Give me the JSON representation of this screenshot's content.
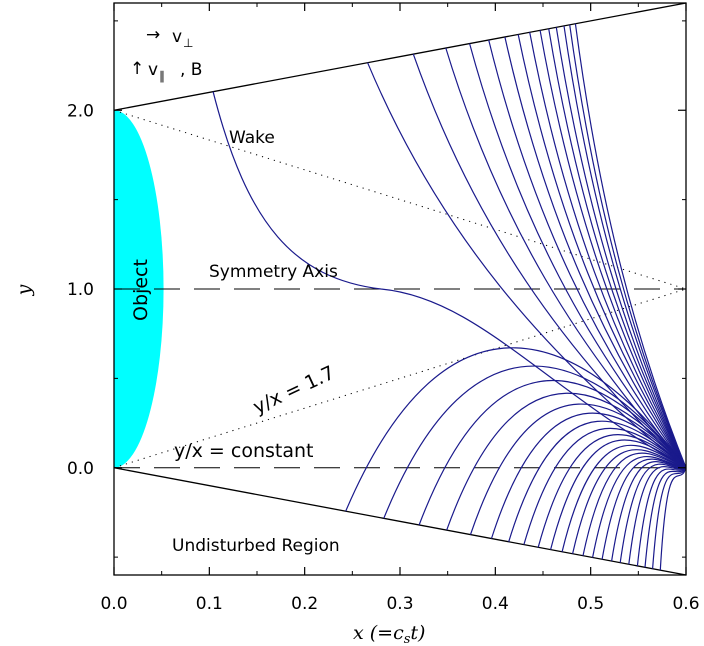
{
  "chart_data": {
    "type": "line",
    "title": "",
    "xlabel": "x (=c",
    "xlabel_sub": "s",
    "xlabel_tail": "t)",
    "ylabel": "y",
    "xlim": [
      0.0,
      0.6
    ],
    "ylim": [
      -0.6,
      2.6
    ],
    "x_ticks": [
      0.0,
      0.1,
      0.2,
      0.3,
      0.4,
      0.5,
      0.6
    ],
    "x_tick_labels": [
      "0.0",
      "0.1",
      "0.2",
      "0.3",
      "0.4",
      "0.5",
      "0.6"
    ],
    "y_ticks": [
      0.0,
      1.0,
      2.0
    ],
    "y_tick_labels": [
      "0.0",
      "1.0",
      "2.0"
    ],
    "grid": false,
    "curve_color": "#1a1a8c",
    "object_color": "#00ffff",
    "object": {
      "label": "Object",
      "center_x": 0.0,
      "center_y": 1.0,
      "semi_x": 0.052,
      "semi_y": 1.0
    },
    "boundary_lines": [
      {
        "name": "upper-boundary",
        "x": [
          0.0,
          0.6
        ],
        "y": [
          2.0,
          2.6
        ]
      },
      {
        "name": "lower-boundary",
        "x": [
          0.0,
          0.6
        ],
        "y": [
          0.0,
          -0.6
        ]
      }
    ],
    "dotted_lines": [
      {
        "name": "upper-dotted",
        "x": [
          0.0,
          0.6
        ],
        "y": [
          2.0,
          1.0
        ]
      },
      {
        "name": "lower-dotted",
        "x": [
          0.0,
          0.6
        ],
        "y": [
          0.0,
          1.0
        ]
      }
    ],
    "dashed_lines": [
      {
        "name": "symmetry-axis",
        "y": 1.0
      },
      {
        "name": "constant-line",
        "y": 0.0
      }
    ],
    "field_lines_upper": [
      {
        "x0": 0.104,
        "y0": 2.104
      },
      {
        "x0": 0.266,
        "y0": 2.266
      },
      {
        "x0": 0.314,
        "y0": 2.314
      },
      {
        "x0": 0.348,
        "y0": 2.348
      },
      {
        "x0": 0.373,
        "y0": 2.373
      },
      {
        "x0": 0.393,
        "y0": 2.393
      },
      {
        "x0": 0.41,
        "y0": 2.41
      },
      {
        "x0": 0.424,
        "y0": 2.424
      },
      {
        "x0": 0.436,
        "y0": 2.436
      },
      {
        "x0": 0.447,
        "y0": 2.447
      },
      {
        "x0": 0.456,
        "y0": 2.456
      },
      {
        "x0": 0.464,
        "y0": 2.464
      },
      {
        "x0": 0.472,
        "y0": 2.472
      },
      {
        "x0": 0.478,
        "y0": 2.478
      },
      {
        "x0": 0.484,
        "y0": 2.484
      }
    ],
    "field_lines_lower": [
      {
        "x0": 0.243,
        "y0": -0.243,
        "peak": 0.62
      },
      {
        "x0": 0.283,
        "y0": -0.283,
        "peak": 0.52
      },
      {
        "x0": 0.32,
        "y0": -0.32,
        "peak": 0.44
      },
      {
        "x0": 0.349,
        "y0": -0.349,
        "peak": 0.37
      },
      {
        "x0": 0.374,
        "y0": -0.374,
        "peak": 0.31
      },
      {
        "x0": 0.396,
        "y0": -0.396,
        "peak": 0.26
      },
      {
        "x0": 0.414,
        "y0": -0.414,
        "peak": 0.215
      },
      {
        "x0": 0.43,
        "y0": -0.43,
        "peak": 0.175
      },
      {
        "x0": 0.445,
        "y0": -0.445,
        "peak": 0.14
      },
      {
        "x0": 0.458,
        "y0": -0.458,
        "peak": 0.11
      },
      {
        "x0": 0.47,
        "y0": -0.47,
        "peak": 0.08
      },
      {
        "x0": 0.481,
        "y0": -0.481,
        "peak": 0.055
      },
      {
        "x0": 0.492,
        "y0": -0.492,
        "peak": 0.035
      },
      {
        "x0": 0.502,
        "y0": -0.502,
        "peak": 0.015
      },
      {
        "x0": 0.512,
        "y0": -0.512,
        "peak": 0.0
      },
      {
        "x0": 0.522,
        "y0": -0.522,
        "peak": -0.015
      },
      {
        "x0": 0.531,
        "y0": -0.531,
        "peak": -0.03
      },
      {
        "x0": 0.54,
        "y0": -0.54,
        "peak": -0.045
      },
      {
        "x0": 0.549,
        "y0": -0.549,
        "peak": -0.06
      },
      {
        "x0": 0.557,
        "y0": -0.557,
        "peak": -0.075
      },
      {
        "x0": 0.565,
        "y0": -0.565,
        "peak": -0.09
      },
      {
        "x0": 0.573,
        "y0": -0.573,
        "peak": -0.105
      }
    ],
    "focus": {
      "x": 0.6,
      "y": 0.0
    },
    "annotations": {
      "v_perp_arrow": "→",
      "v_perp": "v",
      "v_perp_sub": "⊥",
      "v_par_arrow": "↑",
      "v_par": "v",
      "v_par_sub": "∥",
      "v_par_tail": ", B",
      "wake": "Wake",
      "symmetry_axis": "Symmetry Axis",
      "ratio": "y/x = 1.7",
      "constant": "y/x = constant",
      "undisturbed": "Undisturbed Region",
      "object": "Object"
    }
  }
}
